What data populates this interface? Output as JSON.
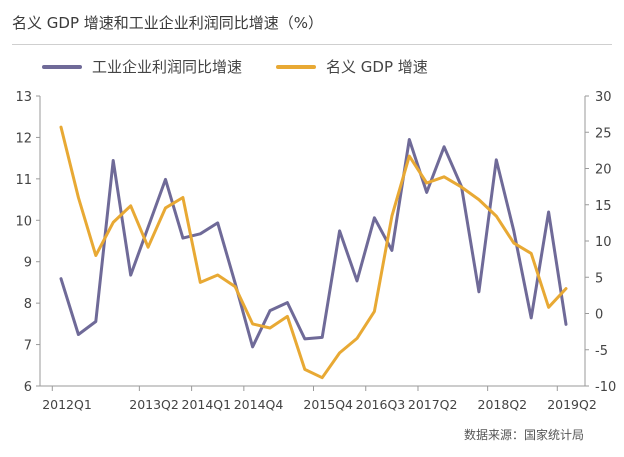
{
  "chart_data": {
    "type": "line",
    "title": "名义 GDP 增速和工业企业利润同比增速（%）",
    "categories": [
      "2012Q1",
      "2012Q2",
      "2012Q3",
      "2012Q4",
      "2013Q1",
      "2013Q2",
      "2013Q3",
      "2013Q4",
      "2014Q1",
      "2014Q2",
      "2014Q3",
      "2014Q4",
      "2015Q1",
      "2015Q2",
      "2015Q3",
      "2015Q4",
      "2016Q1",
      "2016Q2",
      "2016Q3",
      "2016Q4",
      "2017Q1",
      "2017Q2",
      "2017Q3",
      "2017Q4",
      "2018Q1",
      "2018Q2",
      "2018Q3",
      "2018Q4",
      "2019Q1",
      "2019Q2"
    ],
    "x_tick_labels": [
      "2012Q1",
      "2013Q2",
      "2014Q1",
      "2014Q4",
      "2015Q4",
      "2016Q3",
      "2017Q2",
      "2018Q2",
      "2019Q2"
    ],
    "series": [
      {
        "name": "工业企业利润同比增速",
        "axis": "right",
        "color": "#6f6a98",
        "values": [
          4.8,
          -2.9,
          -1.1,
          21.1,
          5.3,
          11.9,
          18.5,
          10.4,
          11.0,
          12.5,
          4.2,
          -4.6,
          0.4,
          1.5,
          -3.5,
          -3.3,
          11.4,
          4.5,
          13.2,
          8.7,
          24.0,
          16.7,
          23.0,
          17.5,
          3.0,
          21.2,
          11.4,
          -0.6,
          14.0,
          -1.5
        ]
      },
      {
        "name": "名义 GDP 增速",
        "axis": "left",
        "color": "#e8a934",
        "values": [
          12.25,
          10.55,
          9.15,
          9.95,
          10.35,
          9.35,
          10.3,
          10.55,
          8.5,
          8.68,
          8.4,
          7.5,
          7.4,
          7.68,
          6.4,
          6.2,
          6.8,
          7.15,
          7.8,
          10.1,
          11.55,
          10.9,
          11.05,
          10.8,
          10.5,
          10.1,
          9.45,
          9.2,
          7.9,
          8.35
        ]
      }
    ],
    "ylim_left": [
      6,
      13
    ],
    "yticks_left": [
      "6",
      "7",
      "8",
      "9",
      "10",
      "11",
      "12",
      "13"
    ],
    "ylim_right": [
      -10,
      30
    ],
    "yticks_right": [
      "-10",
      "-5",
      "0",
      "5",
      "10",
      "15",
      "20",
      "25",
      "30"
    ],
    "grid": false,
    "legend": "top-left",
    "source": "数据来源：国家统计局"
  }
}
